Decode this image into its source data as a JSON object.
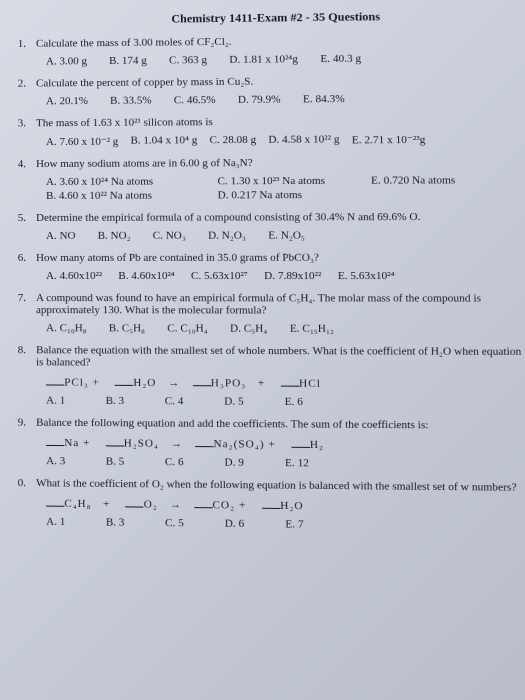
{
  "title": "Chemistry 1411-Exam #2 - 35 Questions",
  "q1": {
    "num": "1.",
    "text": "Calculate the mass of 3.00 moles of CF₂Cl₂.",
    "A": "A. 3.00 g",
    "B": "B. 174 g",
    "C": "C. 363 g",
    "D": "D. 1.81 x 10²⁴g",
    "E": "E. 40.3 g"
  },
  "q2": {
    "num": "2.",
    "text": "Calculate the percent of copper by mass in Cu₂S.",
    "A": "A. 20.1%",
    "B": "B. 33.5%",
    "C": "C. 46.5%",
    "D": "D. 79.9%",
    "E": "E. 84.3%"
  },
  "q3": {
    "num": "3.",
    "text": "The mass of 1.63 x 10²¹ silicon atoms is",
    "A": "A. 7.60 x 10⁻² g",
    "B": "B. 1.04 x 10⁴ g",
    "C": "C. 28.08 g",
    "D": "D. 4.58 x 10²² g",
    "E": "E. 2.71 x 10⁻²³g"
  },
  "q4": {
    "num": "4.",
    "text": "How many sodium atoms are in 6.00 g of Na₃N?",
    "A": "A.    3.60 x 10²⁴ Na atoms",
    "B": "B.    4.60 x 10²² Na atoms",
    "C": "C. 1.30 x 10²³ Na atoms",
    "D": "D. 0.217 Na atoms",
    "E": "E. 0.720 Na atoms"
  },
  "q5": {
    "num": "5.",
    "text": "Determine the empirical formula of a compound consisting of 30.4% N and 69.6% O.",
    "A": "A. NO",
    "B": "B. NO₂",
    "C": "C. NO₃",
    "D": "D. N₂O₃",
    "E": "E. N₂O₅"
  },
  "q6": {
    "num": "6.",
    "text": "How many atoms of Pb are contained in 35.0 grams of PbCO₃?",
    "A": "A. 4.60x10²²",
    "B": "B. 4.60x10²⁴",
    "C": "C. 5.63x10²⁷",
    "D": "D. 7.89x10²²",
    "E": "E. 5.63x10²⁴"
  },
  "q7": {
    "num": "7.",
    "text": "A compound was found to have an empirical formula of C₅H₄. The molar mass of the compound is approximately 130. What is the molecular formula?",
    "A": "A. C₁₀H₈",
    "B": "B. C₅H₈",
    "C": "C. C₁₀H₄",
    "D": "D. C₅H₄",
    "E": "E. C₁₅H₁₂"
  },
  "q8": {
    "num": "8.",
    "text": "Balance the equation with the smallest set of whole numbers. What is the coefficient of H₂O when equation is balanced?",
    "eq_l": "PCl₃ +",
    "eq_m": "H₂O",
    "eq_r1": "H₃PO₃",
    "eq_r2": "HCl",
    "A": "A. 1",
    "B": "B. 3",
    "C": "C. 4",
    "D": "D. 5",
    "E": "E. 6"
  },
  "q9": {
    "num": "9.",
    "text": "Balance the following equation and add the coefficients. The sum of the coefficients is:",
    "eq_l": "Na    +",
    "eq_m": "H₂SO₄",
    "eq_r1": "Na₂(SO₄) +",
    "eq_r2": "H₂",
    "A": "A. 3",
    "B": "B. 5",
    "C": "C. 6",
    "D": "D. 9",
    "E": "E. 12"
  },
  "q10": {
    "num": "0.",
    "text": "What is the coefficient of O₂ when the following equation is balanced with the smallest set of w numbers?",
    "eq_l": "C₄H₈",
    "eq_m": "O₂",
    "eq_r1": "CO₂ +",
    "eq_r2": "H₂O",
    "A": "A. 1",
    "B": "B. 3",
    "C": "C. 5",
    "D": "D. 6",
    "E": "E. 7"
  }
}
